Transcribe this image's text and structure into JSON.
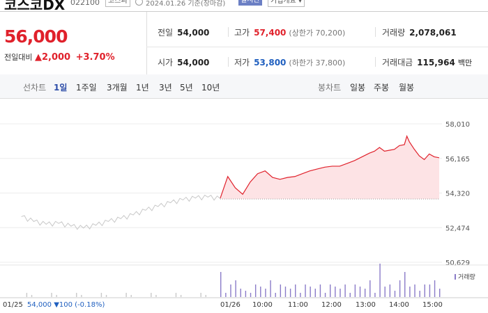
{
  "header": {
    "name": "코스코DX",
    "code": "022100",
    "market": "코스피",
    "date": "2024.01.26 기준(장마감)",
    "realtime": "실시간",
    "company_info": "기업개요 ▾"
  },
  "quote": {
    "price": "56,000",
    "change_label": "전일대비",
    "change": "▲2,000",
    "change_pct": "+3.70%",
    "prev_close_label": "전일",
    "prev_close": "54,000",
    "high_label": "고가",
    "high": "57,400",
    "upper_limit": "(상한가 70,200)",
    "volume_label": "거래량",
    "volume": "2,078,061",
    "open_label": "시가",
    "open": "54,000",
    "low_label": "저가",
    "low": "53,800",
    "lower_limit": "(하한가 37,800)",
    "amount_label": "거래대금",
    "amount": "115,964",
    "amount_unit": "백만"
  },
  "tabs": {
    "line_label": "선차트",
    "periods": [
      "1일",
      "1주일",
      "3개월",
      "1년",
      "3년",
      "5년",
      "10년"
    ],
    "candle_label": "봉차트",
    "candles": [
      "일봉",
      "주봉",
      "월봉"
    ]
  },
  "chart_data": {
    "type": "line",
    "y_ticks": [
      "58,010",
      "56,165",
      "54,320",
      "52,474",
      "50,629"
    ],
    "ylim": [
      50629,
      58010
    ],
    "baseline": 54000,
    "x_ticks": [
      "01/26",
      "10:00",
      "11:00",
      "12:00",
      "13:00",
      "14:00",
      "15:00"
    ],
    "series": [
      {
        "values": [
          [
            -80,
            53060
          ],
          [
            -75,
            52800
          ],
          [
            -70,
            52650
          ],
          [
            -65,
            52700
          ],
          [
            -60,
            52550
          ],
          [
            -55,
            52450
          ],
          [
            -50,
            52600
          ],
          [
            -45,
            52800
          ],
          [
            -40,
            52950
          ],
          [
            -35,
            53150
          ],
          [
            -30,
            53400
          ],
          [
            -25,
            53600
          ],
          [
            -20,
            53800
          ],
          [
            -15,
            53950
          ],
          [
            -10,
            54050
          ],
          [
            -5,
            54100
          ],
          [
            0,
            54020
          ]
        ]
      },
      {
        "values": [
          [
            0,
            54050
          ],
          [
            3,
            55200
          ],
          [
            6,
            54600
          ],
          [
            9,
            54250
          ],
          [
            12,
            54900
          ],
          [
            15,
            55350
          ],
          [
            18,
            55500
          ],
          [
            21,
            55150
          ],
          [
            24,
            55050
          ],
          [
            27,
            55150
          ],
          [
            30,
            55200
          ],
          [
            33,
            55350
          ],
          [
            36,
            55500
          ],
          [
            39,
            55600
          ],
          [
            42,
            55700
          ],
          [
            45,
            55750
          ],
          [
            48,
            55750
          ],
          [
            51,
            55900
          ],
          [
            54,
            56050
          ],
          [
            57,
            56250
          ],
          [
            60,
            56450
          ],
          [
            62,
            56550
          ],
          [
            64,
            56750
          ],
          [
            66,
            56550
          ],
          [
            68,
            56600
          ],
          [
            70,
            56650
          ],
          [
            72,
            56850
          ],
          [
            74,
            56900
          ],
          [
            75,
            57350
          ],
          [
            76,
            57050
          ],
          [
            78,
            56650
          ],
          [
            80,
            56300
          ],
          [
            82,
            56100
          ],
          [
            84,
            56400
          ],
          [
            86,
            56250
          ],
          [
            88,
            56200
          ]
        ]
      }
    ],
    "volume_label": "거래량",
    "volume_series": [
      [
        0,
        6
      ],
      [
        3,
        5
      ],
      [
        6,
        4
      ],
      [
        9,
        3
      ],
      [
        15,
        3
      ],
      [
        20,
        4
      ],
      [
        25,
        3
      ],
      [
        30,
        3
      ],
      [
        35,
        5
      ],
      [
        40,
        3
      ],
      [
        45,
        4
      ],
      [
        50,
        3
      ],
      [
        55,
        3
      ],
      [
        60,
        4
      ],
      [
        64,
        8
      ],
      [
        68,
        3
      ],
      [
        72,
        4
      ],
      [
        74,
        6
      ],
      [
        78,
        3
      ],
      [
        82,
        3
      ],
      [
        86,
        4
      ]
    ]
  },
  "footer": {
    "date": "01/25",
    "price": "54,000",
    "change": "▼100",
    "pct": "(-0.18%)",
    "day": "01/26"
  }
}
